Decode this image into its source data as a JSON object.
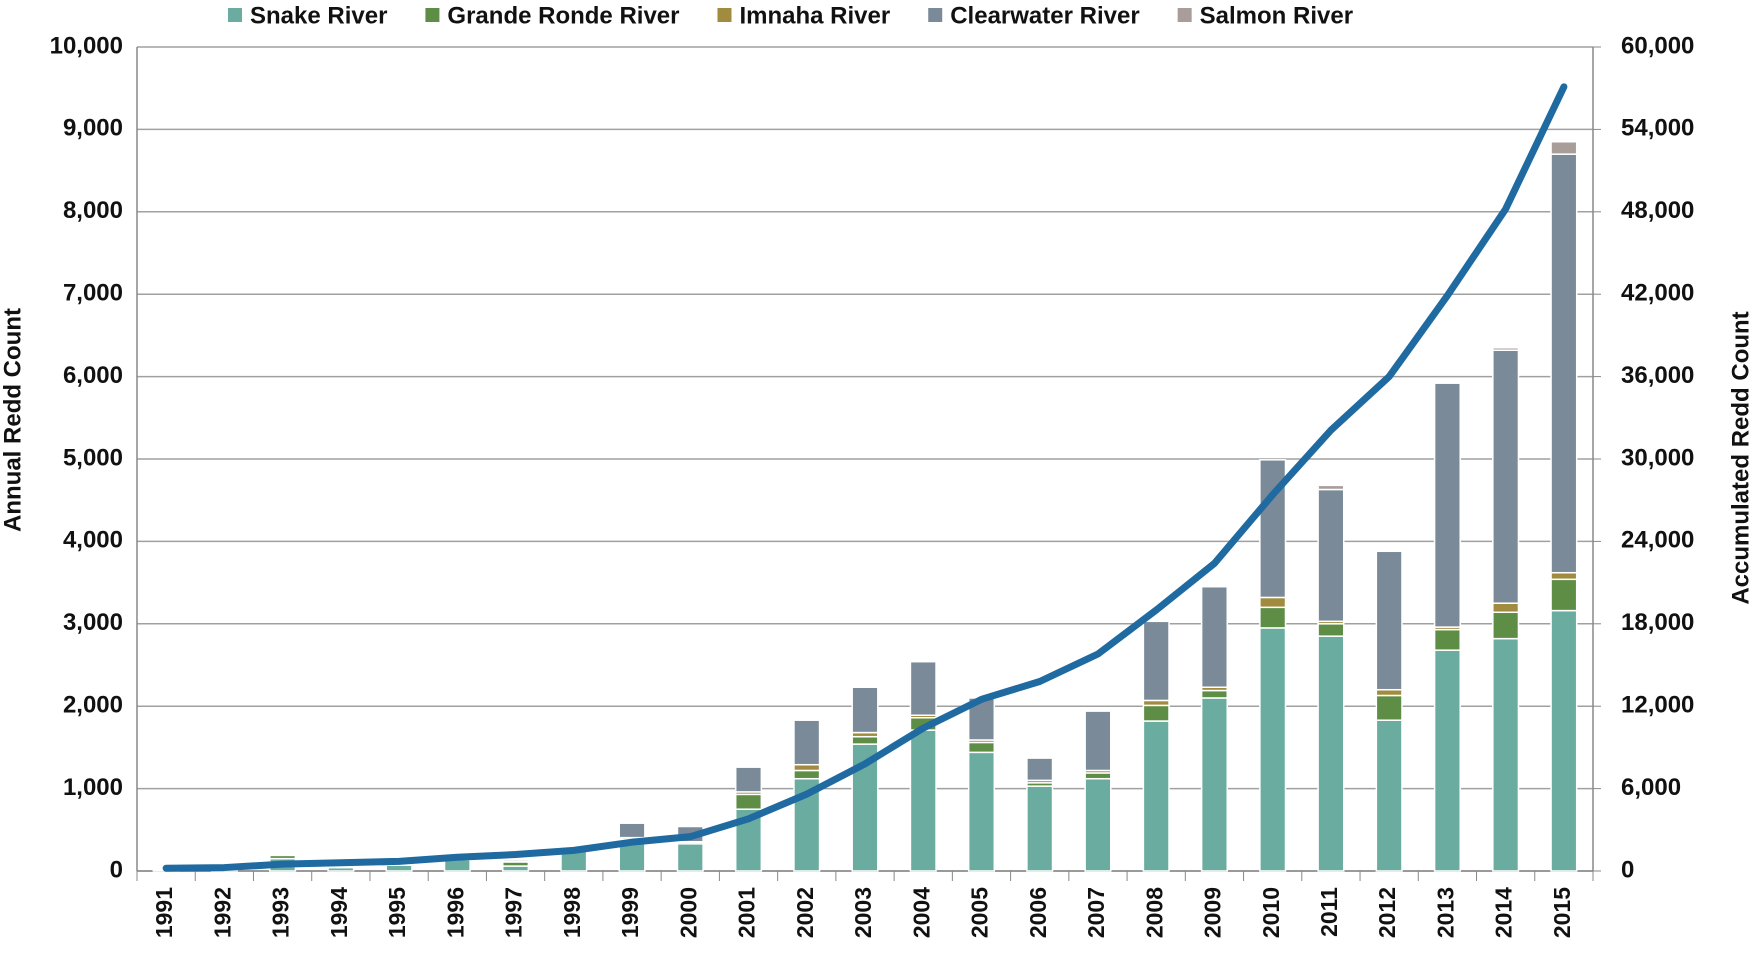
{
  "chart_data": {
    "type": "bar",
    "y_label": "Annual Redd Count",
    "y2_label": "Accumulated Redd Count",
    "categories": [
      "1991",
      "1992",
      "1993",
      "1994",
      "1995",
      "1996",
      "1997",
      "1998",
      "1999",
      "2000",
      "2001",
      "2002",
      "2003",
      "2004",
      "2005",
      "2006",
      "2007",
      "2008",
      "2009",
      "2010",
      "2011",
      "2012",
      "2013",
      "2014",
      "2015"
    ],
    "stacked": true,
    "grid": true,
    "legend": "top",
    "series": [
      {
        "name": "Snake River",
        "color": "#6aada0",
        "values": [
          10,
          20,
          150,
          40,
          70,
          140,
          60,
          250,
          380,
          330,
          750,
          1120,
          1540,
          1710,
          1440,
          1030,
          1120,
          1820,
          2100,
          2950,
          2850,
          1830,
          2680,
          2820,
          3160
        ]
      },
      {
        "name": "Grande Ronde River",
        "color": "#5e8d46",
        "values": [
          0,
          0,
          40,
          0,
          10,
          10,
          50,
          20,
          20,
          20,
          180,
          100,
          90,
          150,
          120,
          40,
          70,
          190,
          90,
          250,
          150,
          300,
          250,
          320,
          380
        ]
      },
      {
        "name": "Imnaha River",
        "color": "#a08b3e",
        "values": [
          0,
          0,
          10,
          0,
          0,
          0,
          10,
          10,
          5,
          5,
          30,
          70,
          50,
          30,
          30,
          30,
          30,
          60,
          40,
          120,
          30,
          70,
          30,
          110,
          80
        ]
      },
      {
        "name": "Clearwater River",
        "color": "#7a8a98",
        "values": [
          0,
          0,
          10,
          0,
          0,
          0,
          20,
          10,
          175,
          185,
          300,
          540,
          550,
          650,
          510,
          270,
          720,
          960,
          1220,
          1670,
          1600,
          1680,
          2960,
          3070,
          5080
        ]
      },
      {
        "name": "Salmon River",
        "color": "#a89d98",
        "values": [
          0,
          0,
          0,
          0,
          0,
          0,
          0,
          0,
          0,
          0,
          0,
          0,
          0,
          0,
          0,
          0,
          0,
          0,
          0,
          0,
          50,
          0,
          0,
          30,
          150
        ]
      },
      {
        "name": "Accumulated",
        "type": "line",
        "axis": "y2",
        "color": "#1f6aa0",
        "values": [
          200,
          250,
          500,
          600,
          700,
          1000,
          1200,
          1500,
          2100,
          2500,
          3800,
          5600,
          7800,
          10400,
          12500,
          13800,
          15800,
          19000,
          22400,
          27400,
          32100,
          36000,
          41900,
          48200,
          57100
        ]
      }
    ],
    "ylim": [
      0,
      10000
    ],
    "yticks": [
      0,
      {
        "value": 1000,
        "label": "1,000"
      },
      {
        "value": 2000,
        "label": "2,000"
      },
      {
        "value": 3000,
        "label": "3,000"
      },
      {
        "value": 4000,
        "label": "4,000"
      },
      {
        "value": 5000,
        "label": "5,000"
      },
      {
        "value": 6000,
        "label": "6,000"
      },
      {
        "value": 7000,
        "label": "7,000"
      },
      {
        "value": 8000,
        "label": "8,000"
      },
      {
        "value": 9000,
        "label": "9,000"
      },
      {
        "value": 10000,
        "label": "10,000"
      }
    ],
    "y2lim": [
      0,
      60000
    ],
    "y2ticks": [
      0,
      {
        "value": 6000,
        "label": "6,000"
      },
      {
        "value": 12000,
        "label": "12,000"
      },
      {
        "value": 18000,
        "label": "18,000"
      },
      {
        "value": 24000,
        "label": "24,000"
      },
      {
        "value": 30000,
        "label": "30,000"
      },
      {
        "value": 36000,
        "label": "36,000"
      },
      {
        "value": 42000,
        "label": "42,000"
      },
      {
        "value": 48000,
        "label": "48,000"
      },
      {
        "value": 54000,
        "label": "54,000"
      },
      {
        "value": 60000,
        "label": "60,000"
      }
    ]
  }
}
